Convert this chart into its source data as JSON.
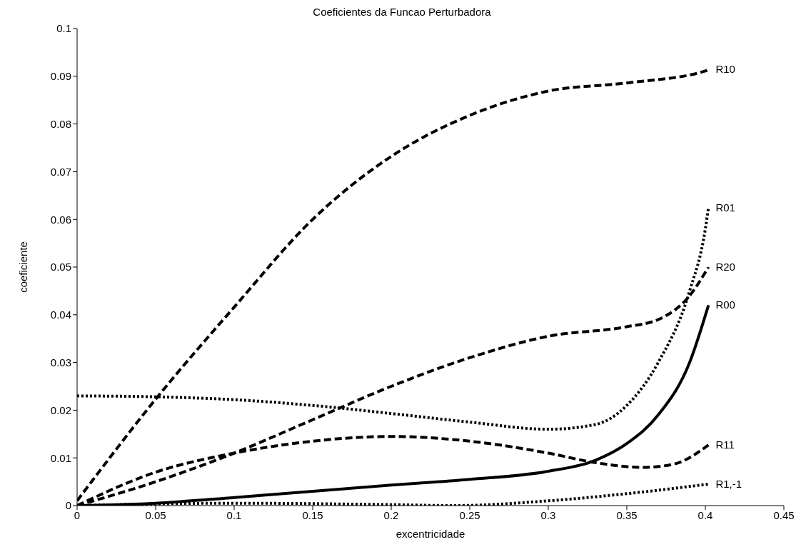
{
  "chart_data": {
    "type": "line",
    "title": "Coeficientes da Funcao Perturbadora",
    "xlabel": "excentricidade",
    "ylabel": "coeficiente",
    "xlim": [
      0,
      0.45
    ],
    "xticks": [
      0,
      0.05,
      0.1,
      0.15,
      0.2,
      0.25,
      0.3,
      0.35,
      0.4,
      0.45
    ],
    "ylim": [
      0,
      0.1
    ],
    "yticks": [
      0,
      0.01,
      0.02,
      0.03,
      0.04,
      0.05,
      0.06,
      0.07,
      0.08,
      0.09,
      0.1
    ],
    "grid": false,
    "legend": false,
    "marker": "none",
    "series": [
      {
        "name": "R10",
        "color": "#000000",
        "line_style": "dashed",
        "x": [
          0,
          0.05,
          0.1,
          0.15,
          0.2,
          0.25,
          0.3,
          0.35,
          0.4,
          0.402
        ],
        "values": [
          0.001,
          0.0223,
          0.0416,
          0.06,
          0.0732,
          0.0818,
          0.0869,
          0.0886,
          0.0911,
          0.0915
        ]
      },
      {
        "name": "R01",
        "color": "#000000",
        "line_style": "dotted",
        "x": [
          0,
          0.05,
          0.1,
          0.15,
          0.2,
          0.25,
          0.3,
          0.33,
          0.35,
          0.37,
          0.39,
          0.4,
          0.402
        ],
        "values": [
          0.023,
          0.0228,
          0.0222,
          0.021,
          0.0193,
          0.0175,
          0.016,
          0.017,
          0.021,
          0.03,
          0.045,
          0.058,
          0.0625
        ]
      },
      {
        "name": "R20",
        "color": "#000000",
        "line_style": "dashed",
        "x": [
          0,
          0.05,
          0.1,
          0.15,
          0.2,
          0.25,
          0.3,
          0.35,
          0.37,
          0.39,
          0.402
        ],
        "values": [
          0,
          0.005,
          0.011,
          0.018,
          0.025,
          0.031,
          0.0355,
          0.0375,
          0.039,
          0.044,
          0.05
        ]
      },
      {
        "name": "R00",
        "color": "#000000",
        "line_style": "solid",
        "x": [
          0,
          0.05,
          0.1,
          0.15,
          0.2,
          0.25,
          0.3,
          0.33,
          0.35,
          0.37,
          0.39,
          0.402
        ],
        "values": [
          0,
          0.0005,
          0.0017,
          0.003,
          0.0043,
          0.0055,
          0.0072,
          0.0095,
          0.013,
          0.019,
          0.03,
          0.042
        ]
      },
      {
        "name": "R11",
        "color": "#000000",
        "line_style": "dashed",
        "x": [
          0,
          0.05,
          0.1,
          0.15,
          0.2,
          0.25,
          0.3,
          0.33,
          0.36,
          0.38,
          0.402
        ],
        "values": [
          0,
          0.007,
          0.011,
          0.0135,
          0.0145,
          0.0135,
          0.011,
          0.009,
          0.008,
          0.0087,
          0.0127
        ]
      },
      {
        "name": "R1,-1",
        "color": "#000000",
        "line_style": "dotted",
        "x": [
          0,
          0.1,
          0.2,
          0.24,
          0.3,
          0.35,
          0.402
        ],
        "values": [
          0,
          0.0005,
          0.0002,
          0,
          0.001,
          0.0025,
          0.0045
        ]
      }
    ]
  }
}
